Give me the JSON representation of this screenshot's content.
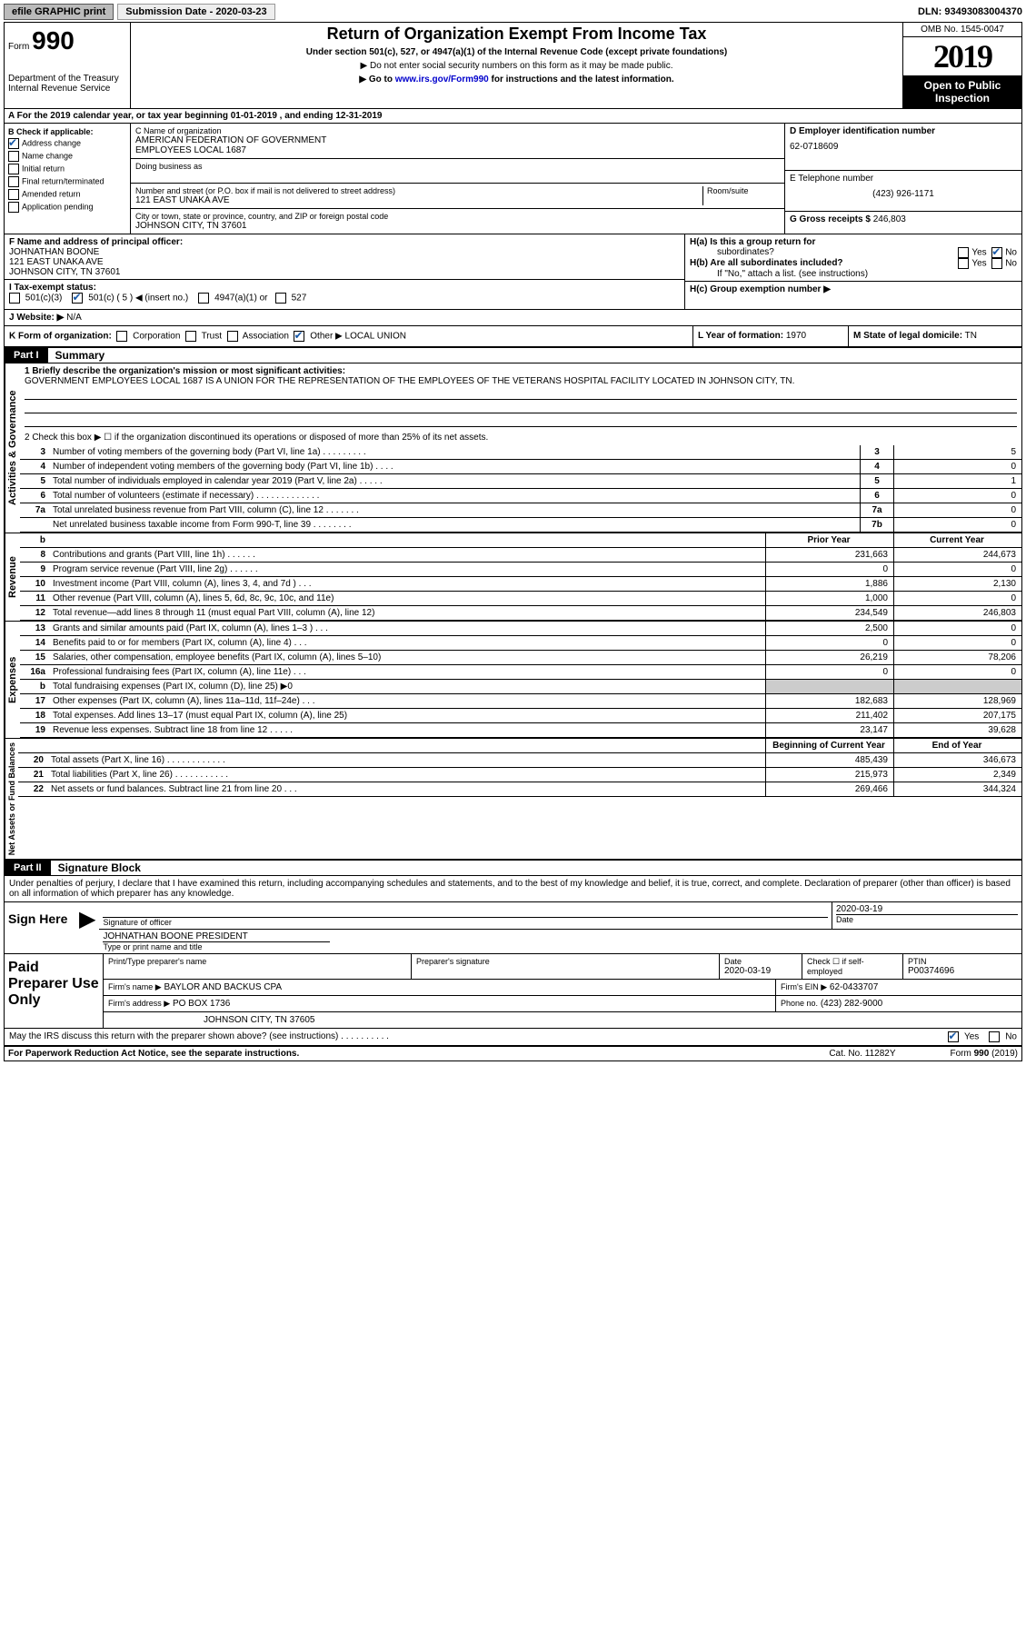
{
  "topbar": {
    "efile": "efile GRAPHIC print",
    "submission_label": "Submission Date - 2020-03-23",
    "dln": "DLN: 93493083004370"
  },
  "header": {
    "form_word": "Form",
    "form_num": "990",
    "dept1": "Department of the Treasury",
    "dept2": "Internal Revenue Service",
    "title": "Return of Organization Exempt From Income Tax",
    "sub1": "Under section 501(c), 527, or 4947(a)(1) of the Internal Revenue Code (except private foundations)",
    "sub2": "▶ Do not enter social security numbers on this form as it may be made public.",
    "sub3_pre": "▶ Go to ",
    "sub3_link": "www.irs.gov/Form990",
    "sub3_post": " for instructions and the latest information.",
    "omb": "OMB No. 1545-0047",
    "year": "2019",
    "inspect1": "Open to Public",
    "inspect2": "Inspection"
  },
  "rowA": "A For the 2019 calendar year, or tax year beginning 01-01-2019    , and ending 12-31-2019",
  "colB": {
    "title": "B Check if applicable:",
    "items": [
      "Address change",
      "Name change",
      "Initial return",
      "Final return/terminated",
      "Amended return",
      "Application pending"
    ],
    "checked_idx": 0
  },
  "C": {
    "name_lbl": "C Name of organization",
    "name1": "AMERICAN FEDERATION OF GOVERNMENT",
    "name2": "EMPLOYEES LOCAL 1687",
    "dba_lbl": "Doing business as",
    "addr_lbl": "Number and street (or P.O. box if mail is not delivered to street address)",
    "room_lbl": "Room/suite",
    "addr": "121 EAST UNAKA AVE",
    "city_lbl": "City or town, state or province, country, and ZIP or foreign postal code",
    "city": "JOHNSON CITY, TN  37601"
  },
  "D": {
    "lbl": "D Employer identification number",
    "val": "62-0718609"
  },
  "E": {
    "lbl": "E Telephone number",
    "val": "(423) 926-1171"
  },
  "G": {
    "lbl": "G Gross receipts $",
    "val": "246,803"
  },
  "F": {
    "lbl": "F  Name and address of principal officer:",
    "l1": "JOHNATHAN BOONE",
    "l2": "121 EAST UNAKA AVE",
    "l3": "JOHNSON CITY, TN  37601"
  },
  "H": {
    "a_lbl": "H(a)  Is this a group return for",
    "a_lbl2": "subordinates?",
    "a_yes": "Yes",
    "a_no": "No",
    "b_lbl": "H(b)  Are all subordinates included?",
    "b_yes": "Yes",
    "b_no": "No",
    "b_note": "If \"No,\" attach a list. (see instructions)",
    "c_lbl": "H(c)  Group exemption number ▶"
  },
  "I": {
    "lbl": "I   Tax-exempt status:",
    "c3": "501(c)(3)",
    "c5": "501(c) ( 5 ) ◀ (insert no.)",
    "a1": "4947(a)(1) or",
    "s527": "527"
  },
  "J": {
    "lbl": "J   Website: ▶",
    "val": "N/A"
  },
  "K": {
    "lbl": "K Form of organization:",
    "corp": "Corporation",
    "trust": "Trust",
    "assoc": "Association",
    "other": "Other ▶",
    "other_val": "LOCAL UNION"
  },
  "L": {
    "lbl": "L Year of formation:",
    "val": "1970"
  },
  "M": {
    "lbl": "M State of legal domicile:",
    "val": "TN"
  },
  "partI": {
    "num": "Part I",
    "title": "Summary"
  },
  "summary": {
    "q1_lbl": "1  Briefly describe the organization's mission or most significant activities:",
    "q1": "GOVERNMENT EMPLOYEES LOCAL 1687 IS A UNION FOR THE REPRESENTATION OF THE EMPLOYEES OF THE VETERANS HOSPITAL FACILITY LOCATED IN JOHNSON CITY, TN.",
    "q2": "2   Check this box ▶ ☐ if the organization discontinued its operations or disposed of more than 25% of its net assets.",
    "rows_gov": [
      {
        "n": "3",
        "label": "Number of voting members of the governing body (Part VI, line 1a)  .  .  .  .  .  .  .  .  .",
        "box": "3",
        "val": "5"
      },
      {
        "n": "4",
        "label": "Number of independent voting members of the governing body (Part VI, line 1b)  .  .  .  .",
        "box": "4",
        "val": "0"
      },
      {
        "n": "5",
        "label": "Total number of individuals employed in calendar year 2019 (Part V, line 2a)  .  .  .  .  .",
        "box": "5",
        "val": "1"
      },
      {
        "n": "6",
        "label": "Total number of volunteers (estimate if necessary)  .  .  .  .  .  .  .  .  .  .  .  .  .",
        "box": "6",
        "val": "0"
      },
      {
        "n": "7a",
        "label": "Total unrelated business revenue from Part VIII, column (C), line 12  .  .  .  .  .  .  .",
        "box": "7a",
        "val": "0"
      },
      {
        "n": "",
        "label": "Net unrelated business taxable income from Form 990-T, line 39  .  .  .  .  .  .  .  .",
        "box": "7b",
        "val": "0"
      }
    ],
    "col_prior": "Prior Year",
    "col_current": "Current Year",
    "rows_rev": [
      {
        "n": "8",
        "label": "Contributions and grants (Part VIII, line 1h)  .  .  .  .  .  .",
        "prior": "231,663",
        "cur": "244,673"
      },
      {
        "n": "9",
        "label": "Program service revenue (Part VIII, line 2g)  .  .  .  .  .  .",
        "prior": "0",
        "cur": "0"
      },
      {
        "n": "10",
        "label": "Investment income (Part VIII, column (A), lines 3, 4, and 7d )  .  .  .",
        "prior": "1,886",
        "cur": "2,130"
      },
      {
        "n": "11",
        "label": "Other revenue (Part VIII, column (A), lines 5, 6d, 8c, 9c, 10c, and 11e)",
        "prior": "1,000",
        "cur": "0"
      },
      {
        "n": "12",
        "label": "Total revenue—add lines 8 through 11 (must equal Part VIII, column (A), line 12)",
        "prior": "234,549",
        "cur": "246,803"
      }
    ],
    "rows_exp": [
      {
        "n": "13",
        "label": "Grants and similar amounts paid (Part IX, column (A), lines 1–3 )  .  .  .",
        "prior": "2,500",
        "cur": "0"
      },
      {
        "n": "14",
        "label": "Benefits paid to or for members (Part IX, column (A), line 4)  .  .  .",
        "prior": "0",
        "cur": "0"
      },
      {
        "n": "15",
        "label": "Salaries, other compensation, employee benefits (Part IX, column (A), lines 5–10)",
        "prior": "26,219",
        "cur": "78,206"
      },
      {
        "n": "16a",
        "label": "Professional fundraising fees (Part IX, column (A), line 11e)  .  .  .",
        "prior": "0",
        "cur": "0"
      },
      {
        "n": "b",
        "label": "Total fundraising expenses (Part IX, column (D), line 25) ▶0",
        "prior": "",
        "cur": "",
        "shade": true
      },
      {
        "n": "17",
        "label": "Other expenses (Part IX, column (A), lines 11a–11d, 11f–24e)  .  .  .",
        "prior": "182,683",
        "cur": "128,969"
      },
      {
        "n": "18",
        "label": "Total expenses. Add lines 13–17 (must equal Part IX, column (A), line 25)",
        "prior": "211,402",
        "cur": "207,175"
      },
      {
        "n": "19",
        "label": "Revenue less expenses. Subtract line 18 from line 12  .  .  .  .  .",
        "prior": "23,147",
        "cur": "39,628"
      }
    ],
    "col_boy": "Beginning of Current Year",
    "col_eoy": "End of Year",
    "rows_net": [
      {
        "n": "20",
        "label": "Total assets (Part X, line 16)  .  .  .  .  .  .  .  .  .  .  .  .",
        "prior": "485,439",
        "cur": "346,673"
      },
      {
        "n": "21",
        "label": "Total liabilities (Part X, line 26)  .  .  .  .  .  .  .  .  .  .  .",
        "prior": "215,973",
        "cur": "2,349"
      },
      {
        "n": "22",
        "label": "Net assets or fund balances. Subtract line 21 from line 20  .  .  .",
        "prior": "269,466",
        "cur": "344,324"
      }
    ]
  },
  "vert": {
    "gov": "Activities & Governance",
    "rev": "Revenue",
    "exp": "Expenses",
    "net": "Net Assets or Fund Balances"
  },
  "partII": {
    "num": "Part II",
    "title": "Signature Block"
  },
  "sig": {
    "perjury": "Under penalties of perjury, I declare that I have examined this return, including accompanying schedules and statements, and to the best of my knowledge and belief, it is true, correct, and complete. Declaration of preparer (other than officer) is based on all information of which preparer has any knowledge.",
    "sign_here": "Sign Here",
    "sig_lbl": "Signature of officer",
    "date_lbl": "Date",
    "date_val": "2020-03-19",
    "name": "JOHNATHAN BOONE  PRESIDENT",
    "name_lbl": "Type or print name and title"
  },
  "paid": {
    "title": "Paid Preparer Use Only",
    "print_lbl": "Print/Type preparer's name",
    "prepsig_lbl": "Preparer's signature",
    "date_lbl": "Date",
    "date_val": "2020-03-19",
    "check_lbl": "Check ☐ if self-employed",
    "ptin_lbl": "PTIN",
    "ptin_val": "P00374696",
    "firm_name_lbl": "Firm's name   ▶",
    "firm_name": "BAYLOR AND BACKUS CPA",
    "firm_ein_lbl": "Firm's EIN ▶",
    "firm_ein": "62-0433707",
    "firm_addr_lbl": "Firm's address ▶",
    "firm_addr1": "PO BOX 1736",
    "firm_addr2": "JOHNSON CITY, TN  37605",
    "phone_lbl": "Phone no.",
    "phone": "(423) 282-9000"
  },
  "discuss": {
    "q": "May the IRS discuss this return with the preparer shown above? (see instructions)  .  .  .  .  .  .  .  .  .  .",
    "yes": "Yes",
    "no": "No"
  },
  "footer": {
    "left": "For Paperwork Reduction Act Notice, see the separate instructions.",
    "mid": "Cat. No. 11282Y",
    "right": "Form 990 (2019)"
  }
}
